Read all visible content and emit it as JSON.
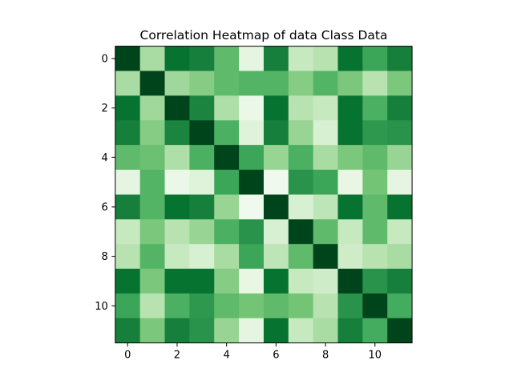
{
  "chart_data": {
    "type": "heatmap",
    "title": "Correlation Heatmap of data Class Data",
    "xlabel": "",
    "ylabel": "",
    "colormap": "Greens",
    "value_range": [
      0,
      1
    ],
    "x_ticks": [
      0,
      2,
      4,
      6,
      8,
      10
    ],
    "y_ticks": [
      0,
      2,
      4,
      6,
      8,
      10
    ],
    "rows": 12,
    "cols": 12,
    "matrix": [
      [
        1.0,
        0.35,
        0.85,
        0.8,
        0.55,
        0.12,
        0.8,
        0.25,
        0.3,
        0.85,
        0.65,
        0.8
      ],
      [
        0.35,
        1.0,
        0.38,
        0.45,
        0.55,
        0.58,
        0.58,
        0.45,
        0.58,
        0.48,
        0.3,
        0.48
      ],
      [
        0.85,
        0.38,
        1.0,
        0.78,
        0.33,
        0.08,
        0.85,
        0.3,
        0.25,
        0.85,
        0.6,
        0.8
      ],
      [
        0.8,
        0.45,
        0.78,
        1.0,
        0.6,
        0.15,
        0.8,
        0.4,
        0.18,
        0.85,
        0.7,
        0.72
      ],
      [
        0.55,
        0.52,
        0.33,
        0.6,
        1.0,
        0.65,
        0.4,
        0.6,
        0.35,
        0.48,
        0.55,
        0.4
      ],
      [
        0.12,
        0.58,
        0.08,
        0.15,
        0.65,
        1.0,
        0.05,
        0.72,
        0.65,
        0.1,
        0.5,
        0.12
      ],
      [
        0.8,
        0.58,
        0.85,
        0.8,
        0.4,
        0.05,
        1.0,
        0.18,
        0.28,
        0.85,
        0.55,
        0.85
      ],
      [
        0.25,
        0.48,
        0.3,
        0.4,
        0.6,
        0.72,
        0.18,
        1.0,
        0.55,
        0.25,
        0.55,
        0.25
      ],
      [
        0.3,
        0.58,
        0.25,
        0.18,
        0.35,
        0.65,
        0.28,
        0.55,
        1.0,
        0.22,
        0.3,
        0.35
      ],
      [
        0.85,
        0.48,
        0.85,
        0.85,
        0.45,
        0.1,
        0.85,
        0.25,
        0.22,
        1.0,
        0.72,
        0.8
      ],
      [
        0.65,
        0.3,
        0.6,
        0.7,
        0.55,
        0.5,
        0.55,
        0.5,
        0.3,
        0.72,
        1.0,
        0.62
      ],
      [
        0.8,
        0.48,
        0.8,
        0.72,
        0.4,
        0.12,
        0.85,
        0.25,
        0.35,
        0.8,
        0.62,
        1.0
      ]
    ]
  }
}
